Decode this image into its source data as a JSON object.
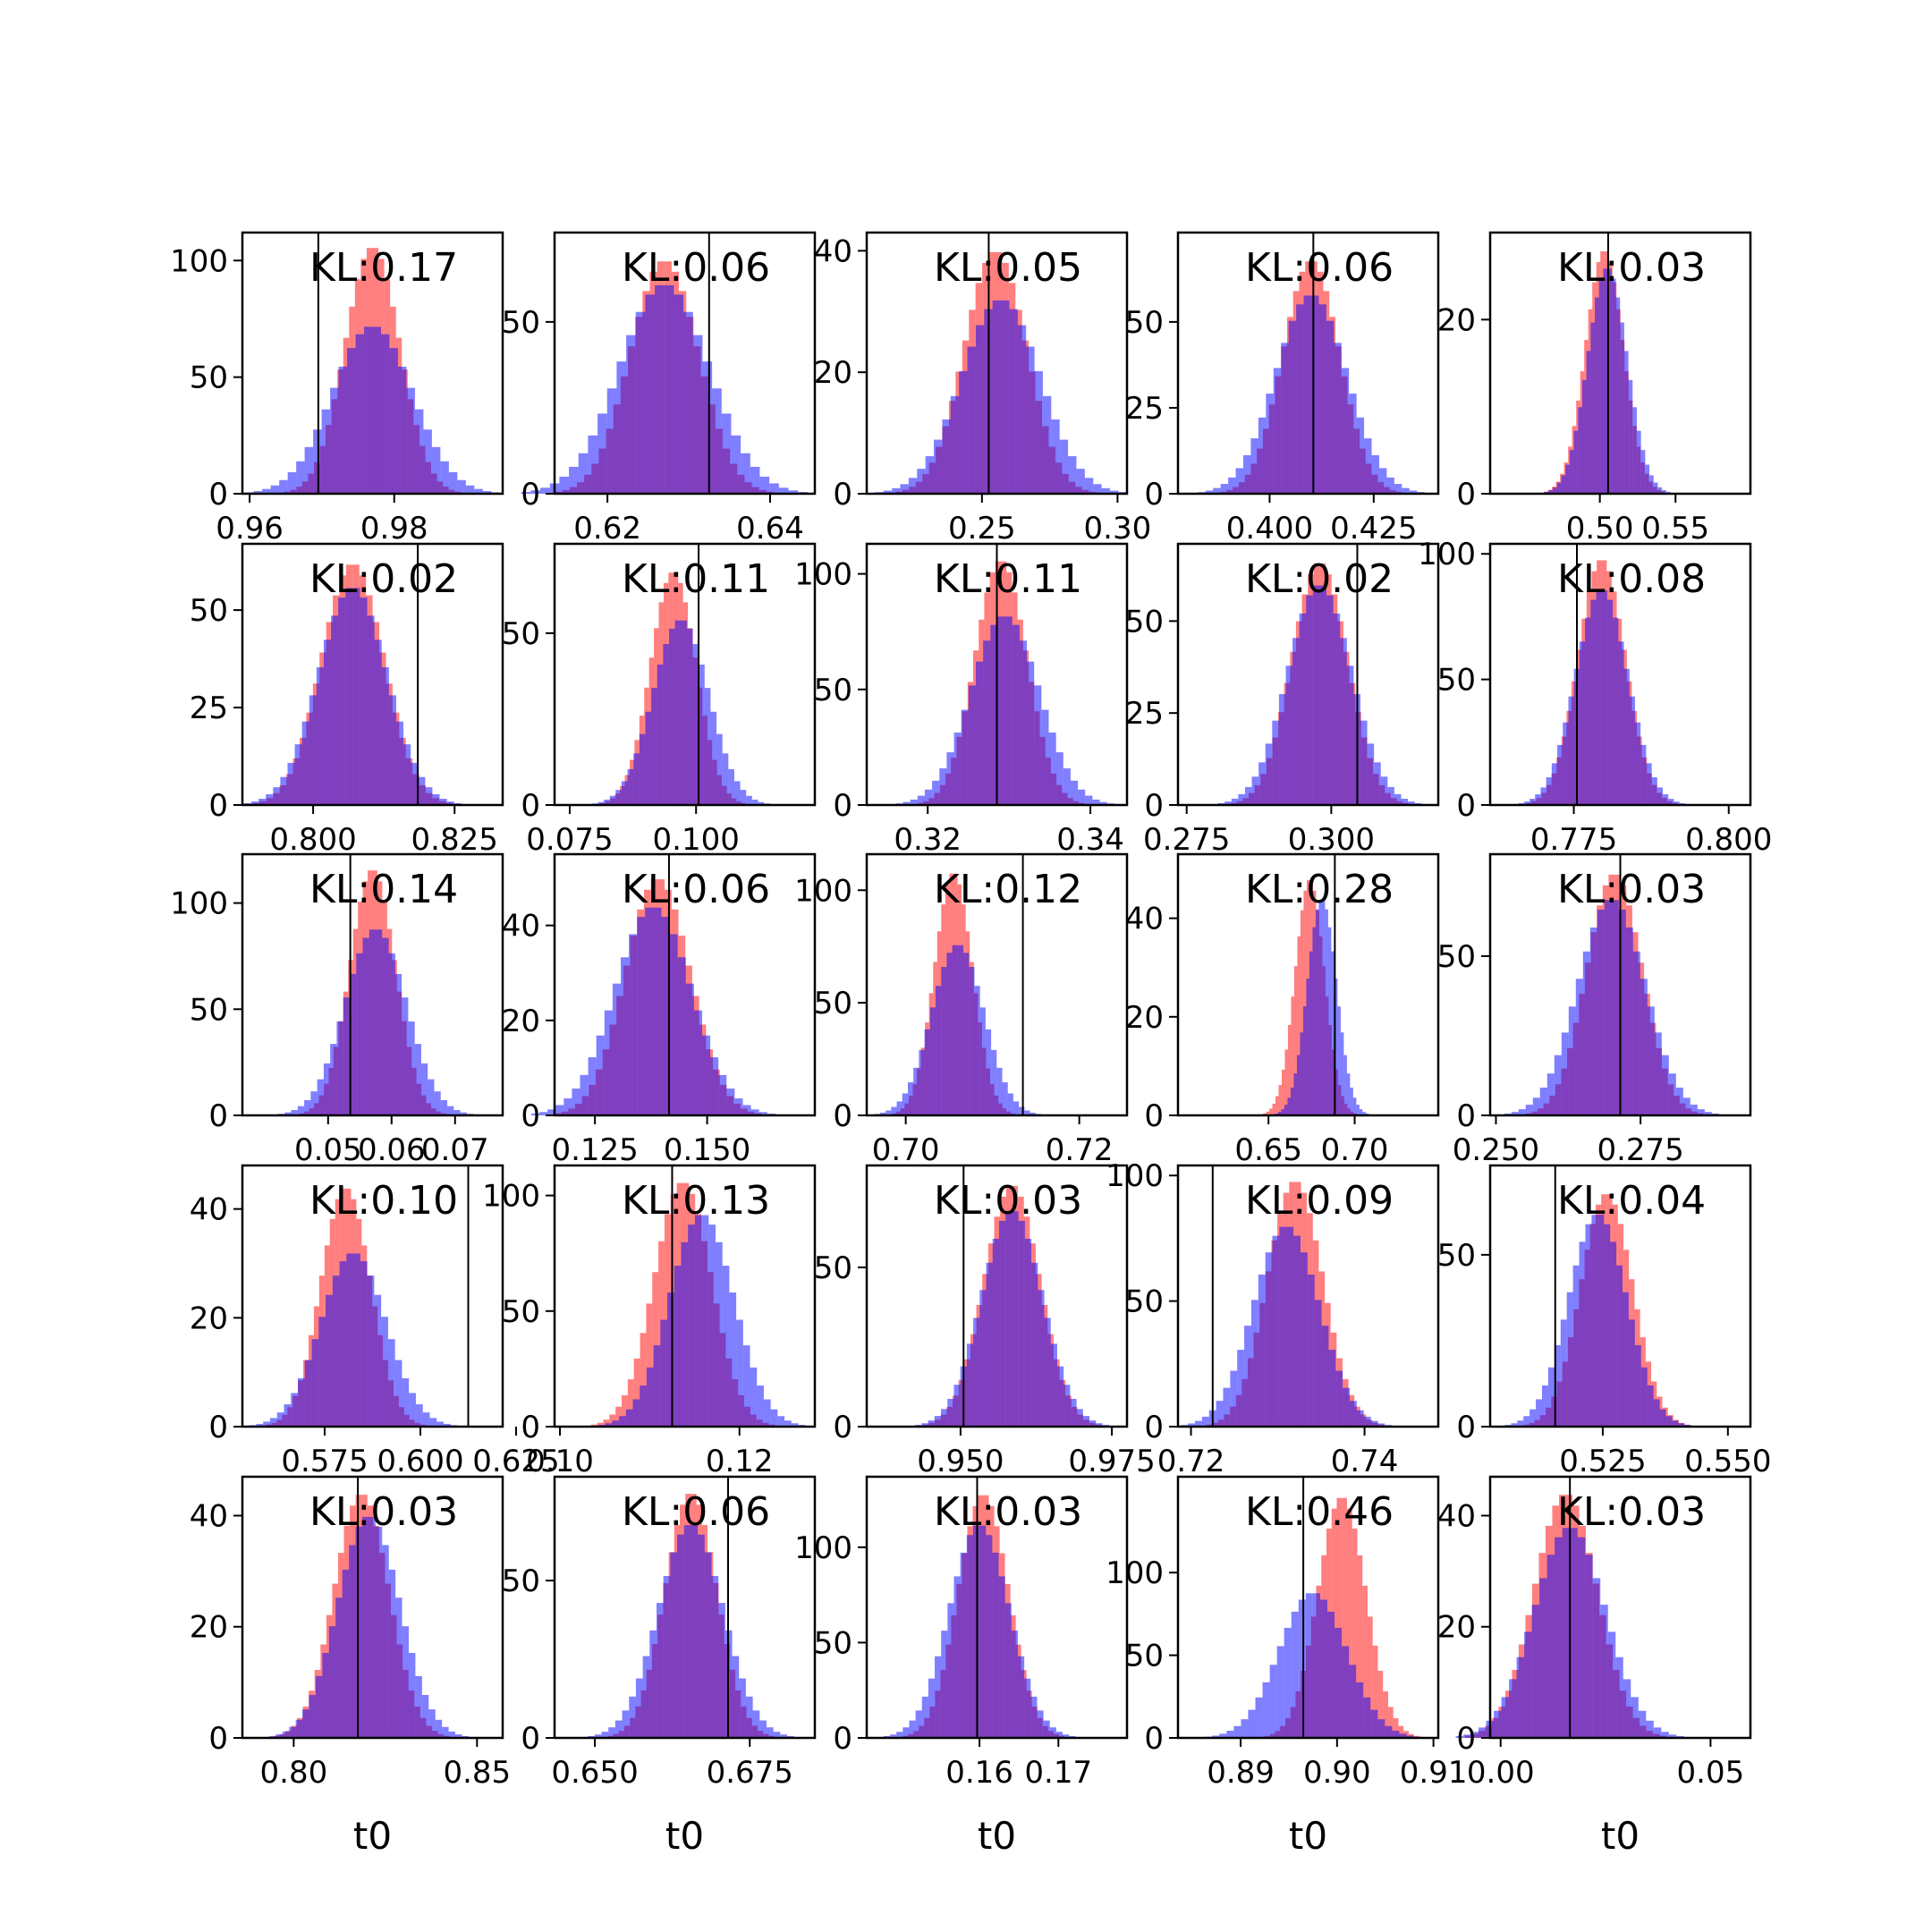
{
  "colors": {
    "prior": "#ff0000",
    "posterior": "#0000ff",
    "truth_line": "#000000",
    "frame": "#000000"
  },
  "histogram_opacity": 0.5,
  "xlabel": "t0",
  "chart_data": [
    {
      "type": "histogram",
      "annotation": "KL:0.17",
      "xlim": [
        0.959,
        0.995
      ],
      "ylim": [
        0,
        112
      ],
      "xticks": [
        0.96,
        0.98
      ],
      "xtick_labels": [
        "0.96",
        "0.98"
      ],
      "yticks": [
        0,
        50,
        100
      ],
      "ytick_labels": [
        "0",
        "50",
        "100"
      ],
      "truth": 0.9695,
      "prior": {
        "mean": 0.977,
        "sd": 0.0038,
        "peak": 106
      },
      "posterior": {
        "mean": 0.977,
        "sd": 0.0055,
        "peak": 72
      }
    },
    {
      "type": "histogram",
      "annotation": "KL:0.06",
      "xlim": [
        0.6135,
        0.6455
      ],
      "ylim": [
        0,
        76
      ],
      "xticks": [
        0.62,
        0.64
      ],
      "xtick_labels": [
        "0.62",
        "0.64"
      ],
      "yticks": [
        0,
        50
      ],
      "ytick_labels": [
        "0",
        "50"
      ],
      "truth": 0.6325,
      "prior": {
        "mean": 0.627,
        "sd": 0.0042,
        "peak": 68
      },
      "posterior": {
        "mean": 0.627,
        "sd": 0.0055,
        "peak": 61
      }
    },
    {
      "type": "histogram",
      "annotation": "KL:0.05",
      "xlim": [
        0.2075,
        0.3035
      ],
      "ylim": [
        0,
        43
      ],
      "xticks": [
        0.25,
        0.3
      ],
      "xtick_labels": [
        "0.25",
        "0.30"
      ],
      "yticks": [
        0,
        20,
        40
      ],
      "ytick_labels": [
        "0",
        "20",
        "40"
      ],
      "truth": 0.2525,
      "prior": {
        "mean": 0.255,
        "sd": 0.0115,
        "peak": 40
      },
      "posterior": {
        "mean": 0.257,
        "sd": 0.0145,
        "peak": 32
      }
    },
    {
      "type": "histogram",
      "annotation": "KL:0.06",
      "xlim": [
        0.378,
        0.4405
      ],
      "ylim": [
        0,
        76
      ],
      "xticks": [
        0.4,
        0.425
      ],
      "xtick_labels": [
        "0.400",
        "0.425"
      ],
      "yticks": [
        0,
        25,
        50
      ],
      "ytick_labels": [
        "0",
        "25",
        "50"
      ],
      "truth": 0.4105,
      "prior": {
        "mean": 0.41,
        "sd": 0.0068,
        "peak": 68
      },
      "posterior": {
        "mean": 0.41,
        "sd": 0.0085,
        "peak": 58
      }
    },
    {
      "type": "histogram",
      "annotation": "KL:0.03",
      "xlim": [
        0.4275,
        0.5995
      ],
      "ylim": [
        0,
        30
      ],
      "xticks": [
        0.5,
        0.55
      ],
      "xtick_labels": [
        "0.50",
        "0.55"
      ],
      "yticks": [
        0,
        20
      ],
      "ytick_labels": [
        "0",
        "20"
      ],
      "truth": 0.5055,
      "prior": {
        "mean": 0.503,
        "sd": 0.0125,
        "peak": 28
      },
      "posterior": {
        "mean": 0.505,
        "sd": 0.013,
        "peak": 26
      }
    },
    {
      "type": "histogram",
      "annotation": "KL:0.02",
      "xlim": [
        0.7875,
        0.8335
      ],
      "ylim": [
        0,
        67
      ],
      "xticks": [
        0.8,
        0.825
      ],
      "xtick_labels": [
        "0.800",
        "0.825"
      ],
      "yticks": [
        0,
        25,
        50
      ],
      "ytick_labels": [
        "0",
        "25",
        "50"
      ],
      "truth": 0.8185,
      "prior": {
        "mean": 0.807,
        "sd": 0.0055,
        "peak": 62
      },
      "posterior": {
        "mean": 0.807,
        "sd": 0.006,
        "peak": 56
      }
    },
    {
      "type": "histogram",
      "annotation": "KL:0.11",
      "xlim": [
        0.072,
        0.1235
      ],
      "ylim": [
        0,
        76
      ],
      "xticks": [
        0.075,
        0.1
      ],
      "xtick_labels": [
        "0.075",
        "0.100"
      ],
      "yticks": [
        0,
        50
      ],
      "ytick_labels": [
        "0",
        "50"
      ],
      "truth": 0.1005,
      "prior": {
        "mean": 0.0955,
        "sd": 0.0045,
        "peak": 68
      },
      "posterior": {
        "mean": 0.097,
        "sd": 0.0055,
        "peak": 54
      }
    },
    {
      "type": "histogram",
      "annotation": "KL:0.11",
      "xlim": [
        0.3125,
        0.3445
      ],
      "ylim": [
        0,
        113
      ],
      "xticks": [
        0.32,
        0.34
      ],
      "xtick_labels": [
        "0.32",
        "0.34"
      ],
      "yticks": [
        0,
        50,
        100
      ],
      "ytick_labels": [
        "0",
        "50",
        "100"
      ],
      "truth": 0.3285,
      "prior": {
        "mean": 0.329,
        "sd": 0.0032,
        "peak": 106
      },
      "posterior": {
        "mean": 0.3295,
        "sd": 0.0042,
        "peak": 82
      }
    },
    {
      "type": "histogram",
      "annotation": "KL:0.02",
      "xlim": [
        0.2735,
        0.3185
      ],
      "ylim": [
        0,
        71
      ],
      "xticks": [
        0.275,
        0.3
      ],
      "xtick_labels": [
        "0.275",
        "0.300"
      ],
      "yticks": [
        0,
        25,
        50
      ],
      "ytick_labels": [
        "0",
        "25",
        "50"
      ],
      "truth": 0.3045,
      "prior": {
        "mean": 0.298,
        "sd": 0.0048,
        "peak": 66
      },
      "posterior": {
        "mean": 0.298,
        "sd": 0.0055,
        "peak": 60
      }
    },
    {
      "type": "histogram",
      "annotation": "KL:0.08",
      "xlim": [
        0.7615,
        0.8035
      ],
      "ylim": [
        0,
        104
      ],
      "xticks": [
        0.775,
        0.8
      ],
      "xtick_labels": [
        "0.775",
        "0.800"
      ],
      "yticks": [
        0,
        50,
        100
      ],
      "ytick_labels": [
        "0",
        "50",
        "100"
      ],
      "truth": 0.7755,
      "prior": {
        "mean": 0.7795,
        "sd": 0.0038,
        "peak": 98
      },
      "posterior": {
        "mean": 0.7795,
        "sd": 0.0042,
        "peak": 86
      }
    },
    {
      "type": "histogram",
      "annotation": "KL:0.14",
      "xlim": [
        0.0365,
        0.0775
      ],
      "ylim": [
        0,
        123
      ],
      "xticks": [
        0.05,
        0.06,
        0.07
      ],
      "xtick_labels": [
        "0.05",
        "0.06",
        "0.07"
      ],
      "yticks": [
        0,
        50,
        100
      ],
      "ytick_labels": [
        "0",
        "50",
        "100"
      ],
      "truth": 0.0535,
      "prior": {
        "mean": 0.057,
        "sd": 0.0036,
        "peak": 116
      },
      "posterior": {
        "mean": 0.0575,
        "sd": 0.0048,
        "peak": 88
      }
    },
    {
      "type": "histogram",
      "annotation": "KL:0.06",
      "xlim": [
        0.116,
        0.174
      ],
      "ylim": [
        0,
        55
      ],
      "xticks": [
        0.125,
        0.15
      ],
      "xtick_labels": [
        "0.125",
        "0.150"
      ],
      "yticks": [
        0,
        20,
        40
      ],
      "ytick_labels": [
        "0",
        "20",
        "40"
      ],
      "truth": 0.1415,
      "prior": {
        "mean": 0.139,
        "sd": 0.0072,
        "peak": 50
      },
      "posterior": {
        "mean": 0.138,
        "sd": 0.0085,
        "peak": 44
      }
    },
    {
      "type": "histogram",
      "annotation": "KL:0.12",
      "xlim": [
        0.6955,
        0.7255
      ],
      "ylim": [
        0,
        116
      ],
      "xticks": [
        0.7,
        0.72
      ],
      "xtick_labels": [
        "0.70",
        "0.72"
      ],
      "yticks": [
        0,
        50,
        100
      ],
      "ytick_labels": [
        "0",
        "50",
        "100"
      ],
      "truth": 0.7135,
      "prior": {
        "mean": 0.7055,
        "sd": 0.0022,
        "peak": 108
      },
      "posterior": {
        "mean": 0.706,
        "sd": 0.003,
        "peak": 76
      }
    },
    {
      "type": "histogram",
      "annotation": "KL:0.28",
      "xlim": [
        0.5975,
        0.7485
      ],
      "ylim": [
        0,
        53
      ],
      "xticks": [
        0.65,
        0.7
      ],
      "xtick_labels": [
        "0.65",
        "0.70"
      ],
      "yticks": [
        0,
        20,
        40
      ],
      "ytick_labels": [
        "0",
        "20",
        "40"
      ],
      "truth": 0.6885,
      "prior": {
        "mean": 0.674,
        "sd": 0.0085,
        "peak": 48
      },
      "posterior": {
        "mean": 0.681,
        "sd": 0.0085,
        "peak": 44
      }
    },
    {
      "type": "histogram",
      "annotation": "KL:0.03",
      "xlim": [
        0.249,
        0.294
      ],
      "ylim": [
        0,
        82
      ],
      "xticks": [
        0.25,
        0.275
      ],
      "xtick_labels": [
        "0.250",
        "0.275"
      ],
      "yticks": [
        0,
        50
      ],
      "ytick_labels": [
        "0",
        "50"
      ],
      "truth": 0.2715,
      "prior": {
        "mean": 0.2705,
        "sd": 0.0048,
        "peak": 76
      },
      "posterior": {
        "mean": 0.27,
        "sd": 0.0058,
        "peak": 68
      }
    },
    {
      "type": "histogram",
      "annotation": "KL:0.10",
      "xlim": [
        0.5535,
        0.6215
      ],
      "ylim": [
        0,
        48
      ],
      "xticks": [
        0.575,
        0.6,
        0.625
      ],
      "xtick_labels": [
        "0.575",
        "0.600",
        "0.625"
      ],
      "yticks": [
        0,
        20,
        40
      ],
      "ytick_labels": [
        "0",
        "20",
        "40"
      ],
      "truth": 0.6125,
      "prior": {
        "mean": 0.5805,
        "sd": 0.0065,
        "peak": 44
      },
      "posterior": {
        "mean": 0.5825,
        "sd": 0.0085,
        "peak": 32
      }
    },
    {
      "type": "histogram",
      "annotation": "KL:0.13",
      "xlim": [
        0.0994,
        0.1284
      ],
      "ylim": [
        0,
        113
      ],
      "xticks": [
        0.1,
        0.12
      ],
      "xtick_labels": [
        "0.10",
        "0.12"
      ],
      "yticks": [
        0,
        50,
        100
      ],
      "ytick_labels": [
        "0",
        "50",
        "100"
      ],
      "truth": 0.1125,
      "prior": {
        "mean": 0.1137,
        "sd": 0.0032,
        "peak": 106
      },
      "posterior": {
        "mean": 0.1158,
        "sd": 0.0036,
        "peak": 92
      }
    },
    {
      "type": "histogram",
      "annotation": "KL:0.03",
      "xlim": [
        0.9345,
        0.9775
      ],
      "ylim": [
        0,
        82
      ],
      "xticks": [
        0.95,
        0.975
      ],
      "xtick_labels": [
        "0.950",
        "0.975"
      ],
      "yticks": [
        0,
        50
      ],
      "ytick_labels": [
        "0",
        "50"
      ],
      "truth": 0.9505,
      "prior": {
        "mean": 0.9585,
        "sd": 0.0046,
        "peak": 76
      },
      "posterior": {
        "mean": 0.9585,
        "sd": 0.005,
        "peak": 68
      }
    },
    {
      "type": "histogram",
      "annotation": "KL:0.09",
      "xlim": [
        0.7185,
        0.7485
      ],
      "ylim": [
        0,
        104
      ],
      "xticks": [
        0.72,
        0.74
      ],
      "xtick_labels": [
        "0.72",
        "0.74"
      ],
      "yticks": [
        0,
        50,
        100
      ],
      "ytick_labels": [
        "0",
        "50",
        "100"
      ],
      "truth": 0.7225,
      "prior": {
        "mean": 0.732,
        "sd": 0.0032,
        "peak": 98
      },
      "posterior": {
        "mean": 0.731,
        "sd": 0.0038,
        "peak": 80
      }
    },
    {
      "type": "histogram",
      "annotation": "KL:0.04",
      "xlim": [
        0.5025,
        0.5545
      ],
      "ylim": [
        0,
        76
      ],
      "xticks": [
        0.525,
        0.55
      ],
      "xtick_labels": [
        "0.525",
        "0.550"
      ],
      "yticks": [
        0,
        50
      ],
      "ytick_labels": [
        "0",
        "50"
      ],
      "truth": 0.5155,
      "prior": {
        "mean": 0.5258,
        "sd": 0.0052,
        "peak": 68
      },
      "posterior": {
        "mean": 0.524,
        "sd": 0.0058,
        "peak": 62
      }
    },
    {
      "type": "histogram",
      "annotation": "KL:0.03",
      "xlim": [
        0.786,
        0.857
      ],
      "ylim": [
        0,
        47
      ],
      "xticks": [
        0.8,
        0.85
      ],
      "xtick_labels": [
        "0.80",
        "0.85"
      ],
      "yticks": [
        0,
        20,
        40
      ],
      "ytick_labels": [
        "0",
        "20",
        "40"
      ],
      "truth": 0.8175,
      "prior": {
        "mean": 0.8185,
        "sd": 0.0075,
        "peak": 44
      },
      "posterior": {
        "mean": 0.8205,
        "sd": 0.0085,
        "peak": 40
      }
    },
    {
      "type": "histogram",
      "annotation": "KL:0.06",
      "xlim": [
        0.6435,
        0.6855
      ],
      "ylim": [
        0,
        83
      ],
      "xticks": [
        0.65,
        0.675
      ],
      "xtick_labels": [
        "0.650",
        "0.675"
      ],
      "yticks": [
        0,
        50
      ],
      "ytick_labels": [
        "0",
        "50"
      ],
      "truth": 0.6715,
      "prior": {
        "mean": 0.6655,
        "sd": 0.0042,
        "peak": 78
      },
      "posterior": {
        "mean": 0.6655,
        "sd": 0.0052,
        "peak": 68
      }
    },
    {
      "type": "histogram",
      "annotation": "KL:0.03",
      "xlim": [
        0.1457,
        0.1787
      ],
      "ylim": [
        0,
        137
      ],
      "xticks": [
        0.16,
        0.17
      ],
      "xtick_labels": [
        "0.16",
        "0.17"
      ],
      "yticks": [
        0,
        50,
        100
      ],
      "ytick_labels": [
        "0",
        "50",
        "100"
      ],
      "truth": 0.1597,
      "prior": {
        "mean": 0.1605,
        "sd": 0.0032,
        "peak": 128
      },
      "posterior": {
        "mean": 0.16,
        "sd": 0.0038,
        "peak": 112
      }
    },
    {
      "type": "histogram",
      "annotation": "KL:0.46",
      "xlim": [
        0.8835,
        0.9105
      ],
      "ylim": [
        0,
        158
      ],
      "xticks": [
        0.89,
        0.9,
        0.91
      ],
      "xtick_labels": [
        "0.89",
        "0.90",
        "0.91"
      ],
      "yticks": [
        0,
        50,
        100
      ],
      "ytick_labels": [
        "0",
        "50",
        "100"
      ],
      "truth": 0.8965,
      "prior": {
        "mean": 0.9005,
        "sd": 0.0025,
        "peak": 146
      },
      "posterior": {
        "mean": 0.8975,
        "sd": 0.0035,
        "peak": 88
      }
    },
    {
      "type": "histogram",
      "annotation": "KL:0.03",
      "xlim": [
        -0.0025,
        0.0595
      ],
      "ylim": [
        0,
        47
      ],
      "xticks": [
        0.0,
        0.05
      ],
      "xtick_labels": [
        "0.00",
        "0.05"
      ],
      "yticks": [
        0,
        20,
        40
      ],
      "ytick_labels": [
        "0",
        "20",
        "40"
      ],
      "truth": 0.0165,
      "prior": {
        "mean": 0.0155,
        "sd": 0.0075,
        "peak": 44
      },
      "posterior": {
        "mean": 0.0165,
        "sd": 0.0085,
        "peak": 38
      }
    }
  ]
}
